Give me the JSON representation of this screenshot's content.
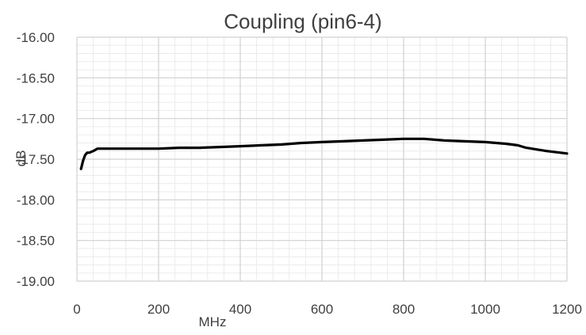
{
  "chart_data": {
    "type": "line",
    "title": "Coupling (pin6-4)",
    "xlabel": "MHz",
    "ylabel": "dB",
    "xlim": [
      0,
      1200
    ],
    "ylim": [
      -19.0,
      -16.0
    ],
    "x_ticks": [
      "0",
      "200",
      "400",
      "600",
      "800",
      "1000",
      "1200"
    ],
    "y_ticks": [
      "-16.00",
      "-16.50",
      "-17.00",
      "-17.50",
      "-18.00",
      "-18.50",
      "-19.00"
    ],
    "grid": true,
    "legend": "none",
    "colors": {
      "line": "#000000",
      "grid_major": "#d0d0d0",
      "grid_minor": "#ebebeb",
      "text": "#404040"
    },
    "series": [
      {
        "x": [
          10,
          15,
          20,
          25,
          30,
          40,
          50,
          75,
          100,
          150,
          200,
          250,
          300,
          350,
          400,
          450,
          500,
          550,
          600,
          650,
          700,
          750,
          800,
          850,
          900,
          950,
          1000,
          1050,
          1080,
          1100,
          1150,
          1200
        ],
        "values": [
          -17.62,
          -17.52,
          -17.45,
          -17.42,
          -17.42,
          -17.4,
          -17.37,
          -17.37,
          -17.37,
          -17.37,
          -17.37,
          -17.36,
          -17.36,
          -17.35,
          -17.34,
          -17.33,
          -17.32,
          -17.3,
          -17.29,
          -17.28,
          -17.27,
          -17.26,
          -17.25,
          -17.25,
          -17.27,
          -17.28,
          -17.29,
          -17.31,
          -17.33,
          -17.36,
          -17.4,
          -17.43
        ]
      }
    ]
  }
}
